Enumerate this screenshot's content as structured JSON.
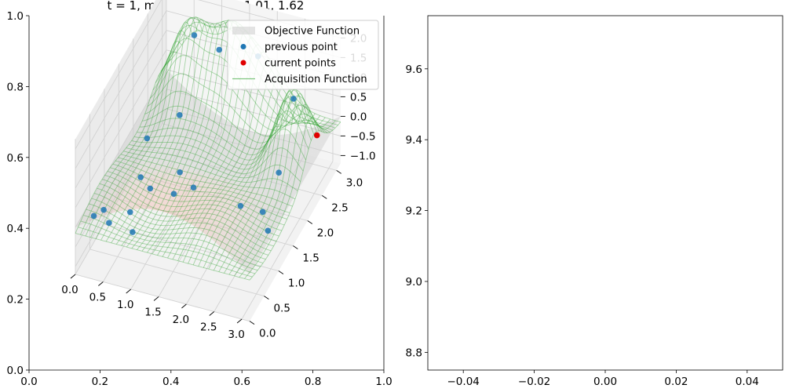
{
  "chart_data": [
    {
      "type": "surface3d",
      "title": "t = 1, min = 0.9068 at 1.01, 1.62",
      "frame": {
        "xlim": [
          0.0,
          1.0
        ],
        "ylim": [
          0.0,
          1.0
        ],
        "x_ticks": [
          "0.0",
          "0.2",
          "0.4",
          "0.6",
          "0.8",
          "1.0"
        ],
        "y_ticks": [
          "0.0",
          "0.2",
          "0.4",
          "0.6",
          "0.8",
          "1.0"
        ]
      },
      "axis3d": {
        "x_ticks": [
          "0.0",
          "0.5",
          "1.0",
          "1.5",
          "2.0",
          "2.5",
          "3.0"
        ],
        "y_ticks": [
          "0.0",
          "0.5",
          "1.0",
          "1.5",
          "2.0",
          "2.5",
          "3.0"
        ],
        "z_ticks": [
          "−1.0",
          "−0.5",
          "0.0",
          "0.5",
          "1.0",
          "1.5",
          "2.0"
        ],
        "xlim": [
          0.0,
          3.14
        ],
        "ylim": [
          0.0,
          3.14
        ],
        "zlim": [
          -1.2,
          2.25
        ]
      },
      "legend": {
        "position": "upper right",
        "items": [
          {
            "key": "objective",
            "label": "Objective Function",
            "color": "#d0d0d0",
            "marker": "patch"
          },
          {
            "key": "previous",
            "label": "previous point",
            "color": "#1f77b4",
            "marker": "circle"
          },
          {
            "key": "current",
            "label": "current points",
            "color": "#e00000",
            "marker": "circle"
          },
          {
            "key": "acquisition",
            "label": "Acquisition Function",
            "color": "#2ca02c",
            "marker": "line"
          }
        ]
      },
      "previous_points": [
        [
          0.15,
          0.35,
          -0.1
        ],
        [
          0.25,
          0.5,
          -0.1
        ],
        [
          0.45,
          0.3,
          -0.1
        ],
        [
          0.7,
          0.55,
          -0.05
        ],
        [
          0.9,
          0.25,
          -0.1
        ],
        [
          0.55,
          1.2,
          -0.05
        ],
        [
          0.8,
          1.05,
          -0.05
        ],
        [
          1.1,
          1.5,
          -0.1
        ],
        [
          1.2,
          1.1,
          -0.1
        ],
        [
          1.45,
          1.3,
          -0.1
        ],
        [
          0.3,
          1.9,
          -0.05
        ],
        [
          0.6,
          2.45,
          -0.05
        ],
        [
          0.55,
          3.05,
          1.2
        ],
        [
          1.0,
          3.05,
          1.0
        ],
        [
          1.7,
          3.05,
          1.1
        ],
        [
          2.35,
          1.2,
          -0.1
        ],
        [
          2.75,
          1.2,
          -0.1
        ],
        [
          3.0,
          0.9,
          -0.1
        ],
        [
          2.6,
          2.55,
          1.0
        ],
        [
          2.7,
          1.85,
          0.05
        ]
      ],
      "current_points": [
        [
          3.1,
          2.4,
          0.45
        ]
      ]
    },
    {
      "type": "empty",
      "xlim": [
        -0.05,
        0.05
      ],
      "ylim": [
        8.75,
        9.75
      ],
      "x_ticks": [
        "−0.04",
        "−0.02",
        "0.00",
        "0.02",
        "0.04"
      ],
      "y_ticks": [
        "8.8",
        "9.0",
        "9.2",
        "9.4",
        "9.6"
      ]
    }
  ]
}
